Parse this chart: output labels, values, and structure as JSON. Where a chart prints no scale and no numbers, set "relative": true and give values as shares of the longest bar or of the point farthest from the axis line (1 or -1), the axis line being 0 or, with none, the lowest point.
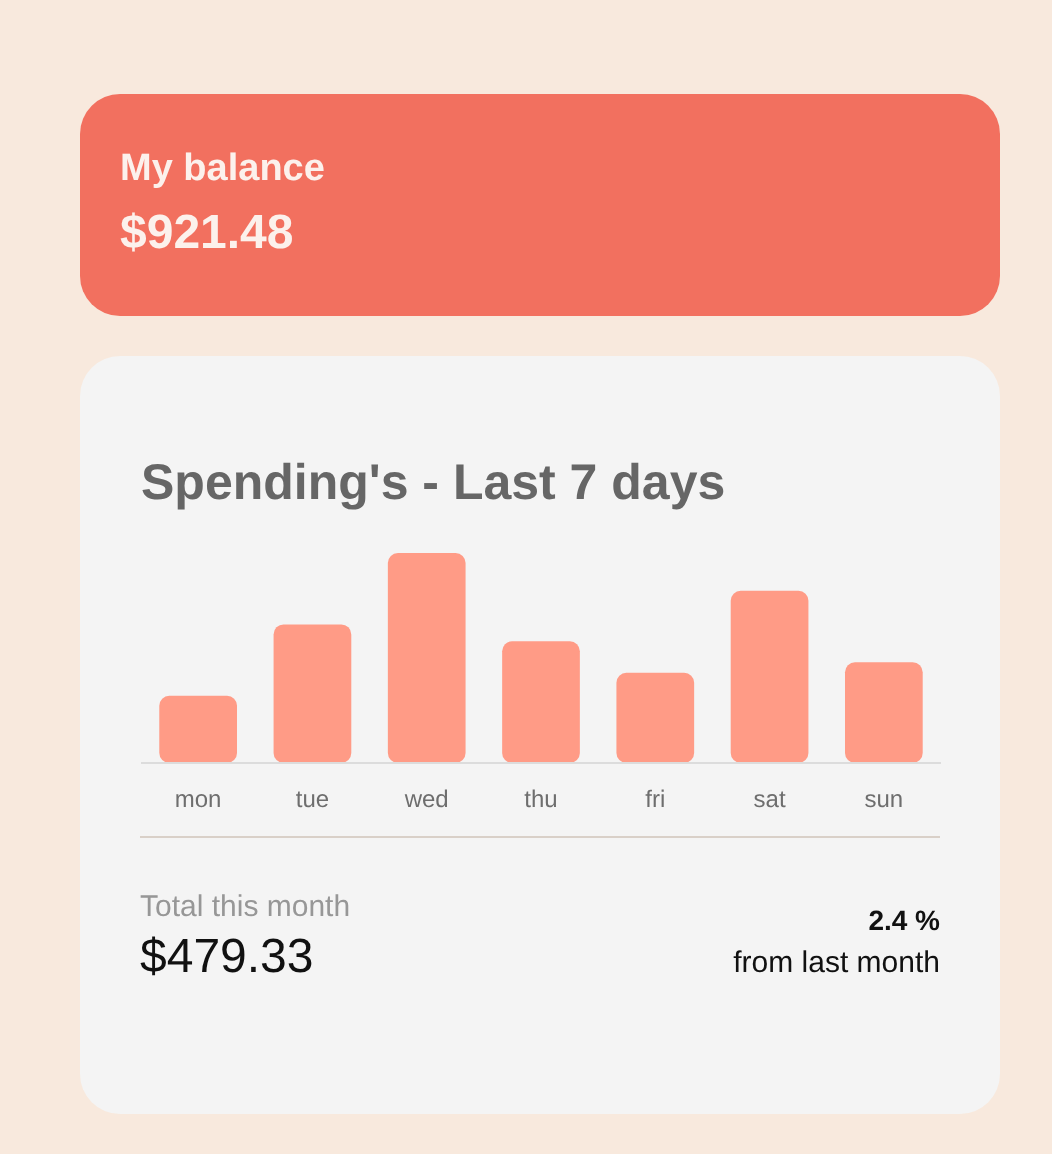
{
  "chart_data": {
    "type": "bar",
    "title": "Spending's - Last 7 days",
    "categories": [
      "mon",
      "tue",
      "wed",
      "thu",
      "fri",
      "sat",
      "sun"
    ],
    "values": [
      0.32,
      0.66,
      1,
      0.58,
      0.43,
      0.82,
      0.48
    ],
    "color": "#ff9b86",
    "relative": true,
    "annotations": [
      "My balance",
      "$921.48",
      "Total this month",
      "$479.33",
      "2.4 %",
      "from last month"
    ]
  }
}
